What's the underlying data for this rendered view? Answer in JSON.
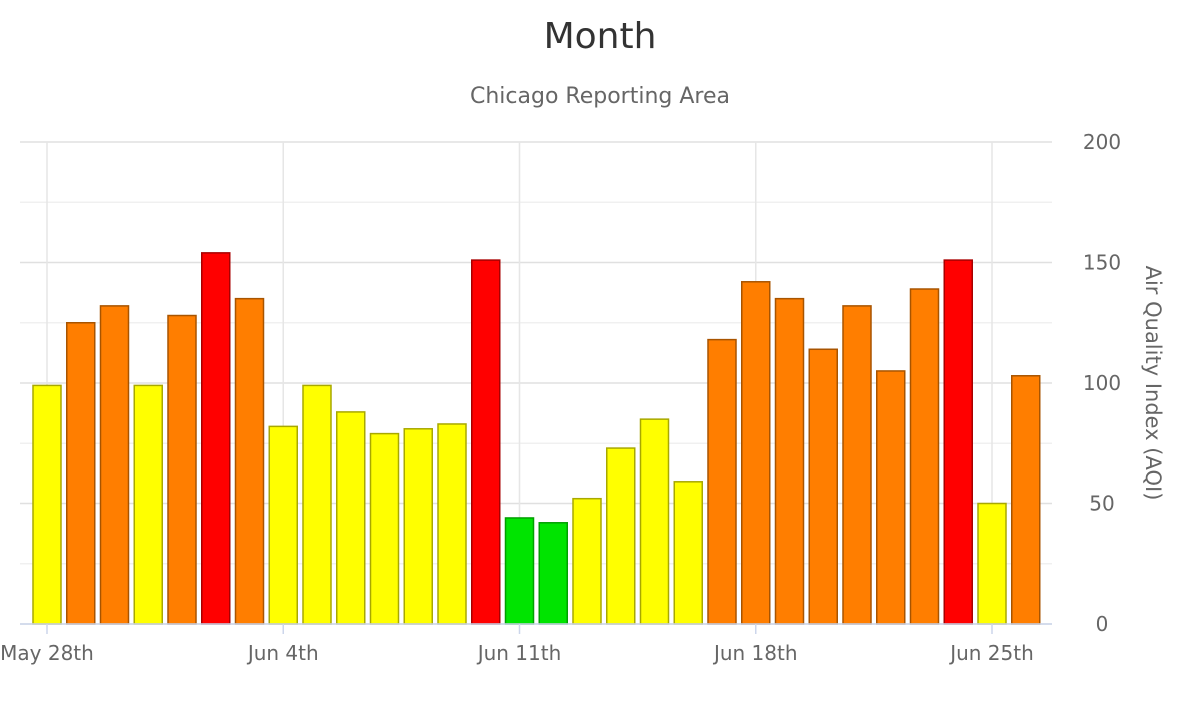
{
  "chart_data": {
    "type": "bar",
    "title": "Month",
    "subtitle": "Chicago Reporting Area",
    "ylabel": "Air Quality Index (AQI)",
    "xlabel": "",
    "ylim": [
      0,
      200
    ],
    "y_ticks": [
      "0",
      "50",
      "100",
      "150",
      "200"
    ],
    "x_tick_labels": [
      "May 28th",
      "Jun 4th",
      "Jun 11th",
      "Jun 18th",
      "Jun 25th"
    ],
    "x_tick_dates": [
      "2023-05-28",
      "2023-06-04",
      "2023-06-11",
      "2023-06-18",
      "2023-06-25"
    ],
    "grid": true,
    "legend": "none",
    "categories": [
      "2023-05-28",
      "2023-05-29",
      "2023-05-30",
      "2023-05-31",
      "2023-06-01",
      "2023-06-02",
      "2023-06-03",
      "2023-06-04",
      "2023-06-05",
      "2023-06-06",
      "2023-06-07",
      "2023-06-08",
      "2023-06-09",
      "2023-06-10",
      "2023-06-11",
      "2023-06-12",
      "2023-06-13",
      "2023-06-14",
      "2023-06-15",
      "2023-06-16",
      "2023-06-17",
      "2023-06-18",
      "2023-06-19",
      "2023-06-20",
      "2023-06-21",
      "2023-06-22",
      "2023-06-23",
      "2023-06-24",
      "2023-06-25",
      "2023-06-26"
    ],
    "values": [
      99,
      125,
      132,
      99,
      128,
      154,
      135,
      82,
      99,
      88,
      79,
      81,
      83,
      151,
      44,
      42,
      52,
      73,
      85,
      59,
      118,
      142,
      135,
      114,
      132,
      105,
      139,
      151,
      50,
      103
    ],
    "bar_categories": [
      "moderate",
      "usg",
      "usg",
      "moderate",
      "usg",
      "unhealthy",
      "usg",
      "moderate",
      "moderate",
      "moderate",
      "moderate",
      "moderate",
      "moderate",
      "unhealthy",
      "good",
      "good",
      "moderate",
      "moderate",
      "moderate",
      "moderate",
      "usg",
      "usg",
      "usg",
      "usg",
      "usg",
      "usg",
      "usg",
      "unhealthy",
      "moderate",
      "usg"
    ],
    "colors": {
      "good": "#00e400",
      "moderate": "#ffff00",
      "usg": "#ff7e00",
      "unhealthy": "#ff0000"
    }
  }
}
